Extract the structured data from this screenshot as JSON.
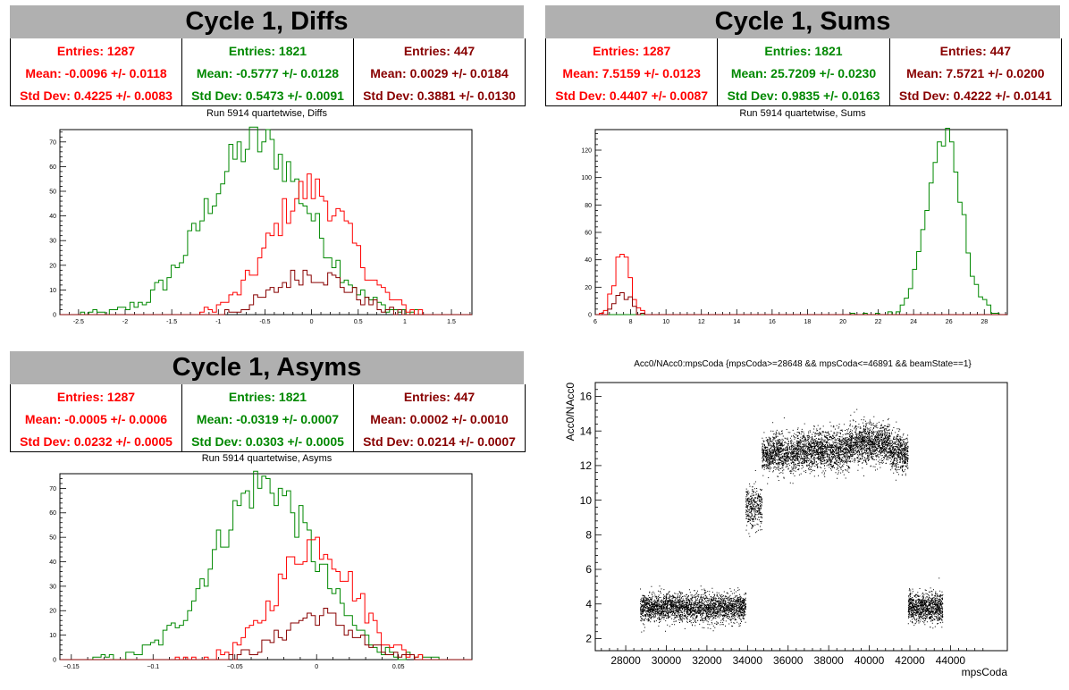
{
  "colors": {
    "c1": "#ff0000",
    "c2": "#008800",
    "c3": "#880000",
    "title_bg": "#b0b0b0"
  },
  "panels": [
    {
      "title": "Cycle 1, Diffs",
      "subtitle": "Run 5914 quartetwise, Diffs",
      "stats": [
        {
          "entries": "Entries: 1287",
          "mean": "Mean: -0.0096 +/- 0.0118",
          "std": "Std Dev: 0.4225 +/- 0.0083"
        },
        {
          "entries": "Entries: 1821",
          "mean": "Mean: -0.5777 +/- 0.0128",
          "std": "Std Dev: 0.5473 +/- 0.0091"
        },
        {
          "entries": "Entries: 447",
          "mean": "Mean: 0.0029 +/- 0.0184",
          "std": "Std Dev: 0.3881 +/- 0.0130"
        }
      ]
    },
    {
      "title": "Cycle 1, Sums",
      "subtitle": "Run 5914 quartetwise, Sums",
      "stats": [
        {
          "entries": "Entries: 1287",
          "mean": "Mean: 7.5159 +/- 0.0123",
          "std": "Std Dev: 0.4407 +/- 0.0087"
        },
        {
          "entries": "Entries: 1821",
          "mean": "Mean: 25.7209 +/- 0.0230",
          "std": "Std Dev: 0.9835 +/- 0.0163"
        },
        {
          "entries": "Entries: 447",
          "mean": "Mean: 7.5721 +/- 0.0200",
          "std": "Std Dev: 0.4222 +/- 0.0141"
        }
      ]
    },
    {
      "title": "Cycle 1, Asyms",
      "subtitle": "Run 5914 quartetwise, Asyms",
      "stats": [
        {
          "entries": "Entries: 1287",
          "mean": "Mean: -0.0005 +/- 0.0006",
          "std": "Std Dev: 0.0232 +/- 0.0005"
        },
        {
          "entries": "Entries: 1821",
          "mean": "Mean: -0.0319 +/- 0.0007",
          "std": "Std Dev: 0.0303 +/- 0.0005"
        },
        {
          "entries": "Entries: 447",
          "mean": "Mean: 0.0002 +/- 0.0010",
          "std": "Std Dev: 0.0214 +/- 0.0007"
        }
      ]
    },
    {
      "title": "Acc0/NAcc0:mpsCoda {mpsCoda>=28648 && mpsCoda<=46891 && beamState==1}"
    }
  ],
  "chart_data": [
    {
      "type": "histogram",
      "xlim": [
        -2.7,
        1.72
      ],
      "ylim": [
        0,
        75
      ],
      "xticks": [
        -2.5,
        -2,
        -1.5,
        -1,
        -0.5,
        0,
        0.5,
        1,
        1.5
      ],
      "xtick_labels": [
        "-2.5",
        "-2",
        "-1.5",
        "-1",
        "-0.5",
        "0",
        "0.5",
        "1",
        "1.5"
      ],
      "yticks": [
        0,
        10,
        20,
        30,
        40,
        50,
        60,
        70
      ],
      "ytick_labels": [
        "0",
        "10",
        "20",
        "30",
        "40",
        "50",
        "60",
        "70"
      ],
      "series": [
        {
          "color": "#008800",
          "mean": -0.5777,
          "std": 0.5473,
          "peak": 70,
          "range": [
            -2.5,
            1.2
          ]
        },
        {
          "color": "#ff0000",
          "mean": -0.0096,
          "std": 0.4225,
          "peak": 51,
          "range": [
            -1.2,
            1.2
          ]
        },
        {
          "color": "#880000",
          "mean": 0.0029,
          "std": 0.3881,
          "peak": 17,
          "range": [
            -1.0,
            1.0
          ]
        }
      ]
    },
    {
      "type": "histogram",
      "xlim": [
        6,
        29.3
      ],
      "ylim": [
        0,
        135
      ],
      "xticks": [
        6,
        8,
        10,
        12,
        14,
        16,
        18,
        20,
        22,
        24,
        26,
        28
      ],
      "xtick_labels": [
        "6",
        "8",
        "10",
        "12",
        "14",
        "16",
        "18",
        "20",
        "22",
        "24",
        "26",
        "28"
      ],
      "yticks": [
        0,
        20,
        40,
        60,
        80,
        100,
        120
      ],
      "ytick_labels": [
        "0",
        "20",
        "40",
        "60",
        "80",
        "100",
        "120"
      ],
      "series": [
        {
          "color": "#008800",
          "mean": 25.7209,
          "std": 0.9835,
          "peak": 128,
          "range": [
            20.5,
            28.8
          ]
        },
        {
          "color": "#ff0000",
          "mean": 7.5159,
          "std": 0.4407,
          "peak": 41,
          "range": [
            6.3,
            8.9
          ]
        },
        {
          "color": "#880000",
          "mean": 7.5721,
          "std": 0.4222,
          "peak": 16,
          "range": [
            6.4,
            8.8
          ]
        }
      ]
    },
    {
      "type": "histogram",
      "xlim": [
        -0.157,
        0.095
      ],
      "ylim": [
        0,
        76
      ],
      "xticks": [
        -0.15,
        -0.1,
        -0.05,
        0,
        0.05
      ],
      "xtick_labels": [
        "−0.15",
        "−0.1",
        "−0.05",
        "0",
        "0.05"
      ],
      "yticks": [
        0,
        10,
        20,
        30,
        40,
        50,
        60,
        70
      ],
      "ytick_labels": [
        "0",
        "10",
        "20",
        "30",
        "40",
        "50",
        "60",
        "70"
      ],
      "series": [
        {
          "color": "#008800",
          "mean": -0.0319,
          "std": 0.0303,
          "peak": 72,
          "range": [
            -0.14,
            0.08
          ]
        },
        {
          "color": "#ff0000",
          "mean": -0.0005,
          "std": 0.0232,
          "peak": 48,
          "range": [
            -0.09,
            0.07
          ]
        },
        {
          "color": "#880000",
          "mean": 0.0002,
          "std": 0.0214,
          "peak": 18,
          "range": [
            -0.07,
            0.06
          ]
        }
      ]
    },
    {
      "type": "scatter",
      "xlabel": "mpsCoda",
      "ylabel": "Acc0/NAcc0",
      "xlim": [
        26500,
        46800
      ],
      "ylim": [
        1.3,
        16.8
      ],
      "xticks": [
        28000,
        30000,
        32000,
        34000,
        36000,
        38000,
        40000,
        42000,
        44000
      ],
      "xtick_labels": [
        "28000",
        "30000",
        "32000",
        "34000",
        "36000",
        "38000",
        "40000",
        "42000",
        "44000"
      ],
      "yticks": [
        2,
        4,
        6,
        8,
        10,
        12,
        14,
        16
      ],
      "ytick_labels": [
        "2",
        "4",
        "6",
        "8",
        "10",
        "12",
        "14",
        "16"
      ],
      "clusters": [
        {
          "x_range": [
            28700,
            33900
          ],
          "y_center": 3.8,
          "y_spread": 0.4,
          "count": 2600
        },
        {
          "x_range": [
            33900,
            34700
          ],
          "y_center": 9.6,
          "y_spread": 0.6,
          "count": 350
        },
        {
          "x_range": [
            34700,
            36400
          ],
          "y_center": 12.7,
          "y_spread": 0.55,
          "count": 900
        },
        {
          "x_range": [
            36400,
            39000
          ],
          "y_center": 12.9,
          "y_spread": 0.55,
          "count": 1500
        },
        {
          "x_range": [
            39000,
            41000
          ],
          "y_center": 13.3,
          "y_spread": 0.55,
          "count": 1200
        },
        {
          "x_range": [
            41000,
            41900
          ],
          "y_center": 12.8,
          "y_spread": 0.55,
          "count": 500
        },
        {
          "x_range": [
            41900,
            43600
          ],
          "y_center": 3.8,
          "y_spread": 0.4,
          "count": 1000
        }
      ]
    }
  ]
}
